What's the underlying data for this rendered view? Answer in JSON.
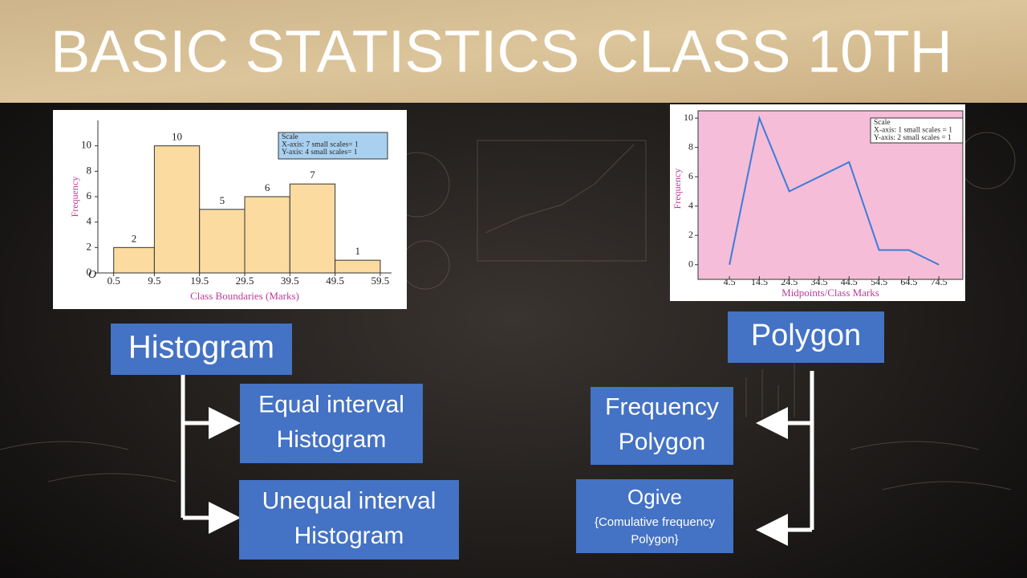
{
  "header": {
    "title": "BASIC STATISTICS CLASS 10TH"
  },
  "chart_data": [
    {
      "type": "histogram",
      "bins": [
        0.5,
        9.5,
        19.5,
        29.5,
        39.5,
        49.5,
        59.5
      ],
      "values": [
        2,
        10,
        5,
        6,
        7,
        1
      ],
      "color": "#fbdba0",
      "xlim": [
        -3,
        62
      ],
      "ylim": [
        0,
        12
      ],
      "yticks": [
        0,
        2,
        4,
        6,
        8,
        10
      ],
      "origin_label": "O",
      "ylabel": "Frequency",
      "xlabel": "Class Boundaries (Marks)",
      "scale_note": [
        "Scale",
        "X-axis: 7 small scales= 1",
        "Y-axis: 4 small scales= 1"
      ]
    },
    {
      "type": "line",
      "x": [
        4.5,
        14.5,
        24.5,
        34.5,
        44.5,
        54.5,
        64.5,
        74.5
      ],
      "values": [
        0,
        10,
        5,
        6,
        7,
        1,
        1,
        0
      ],
      "color": "#3b7dd8",
      "background": "#f5bdd8",
      "xlim": [
        -6,
        82.5
      ],
      "ylim": [
        -1,
        10.5
      ],
      "xticks": [
        4.5,
        14.5,
        24.5,
        34.5,
        44.5,
        54.5,
        64.5,
        74.5
      ],
      "yticks": [
        0,
        2,
        4,
        6,
        8,
        10
      ],
      "ylabel": "Frequency",
      "xlabel": "Midpoints/Class Marks",
      "scale_note": [
        "Scale",
        "X-axis: 1 small scales = 1",
        "Y-axis: 2 small scales = 1"
      ]
    }
  ],
  "nodes": [
    {
      "lines": [
        "Histogram"
      ]
    },
    {
      "lines": [
        "Equal interval",
        "Histogram"
      ]
    },
    {
      "lines": [
        "Unequal interval",
        "Histogram"
      ]
    },
    {
      "lines": [
        "Polygon"
      ]
    },
    {
      "lines": [
        "Frequency",
        "Polygon"
      ]
    },
    {
      "lines": [
        "Ogive",
        "{Comulative frequency",
        "Polygon}"
      ]
    }
  ]
}
